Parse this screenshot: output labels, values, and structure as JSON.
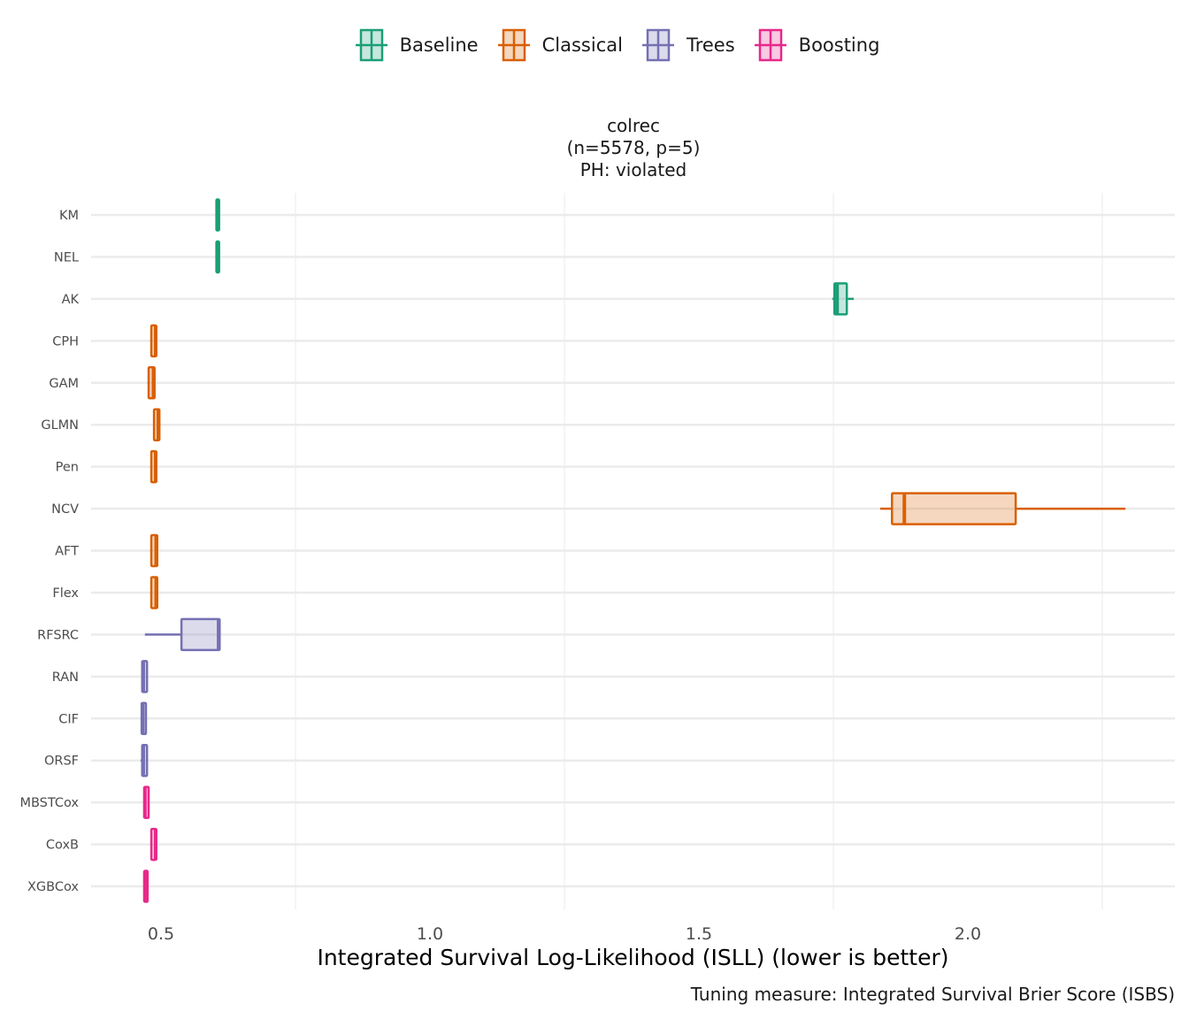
{
  "chart_data": {
    "type": "boxplot",
    "title": "colrec",
    "subtitle": "(n=5578, p=5)",
    "subtitle2": "PH: violated",
    "xlabel": "Integrated Survival Log-Likelihood (ISLL) (lower is better)",
    "caption": "Tuning measure: Integrated Survival Brier Score (ISBS)",
    "xlim": [
      0.37,
      2.385
    ],
    "xticks": [
      0.5,
      1.0,
      1.5,
      2.0
    ],
    "xtick_labels": [
      "0.5",
      "1.0",
      "1.5",
      "2.0"
    ],
    "grid": true,
    "legend_position": "top",
    "groups": [
      {
        "name": "Baseline",
        "color": "#1b9e77"
      },
      {
        "name": "Classical",
        "color": "#d95f02"
      },
      {
        "name": "Trees",
        "color": "#7570b3"
      },
      {
        "name": "Boosting",
        "color": "#e7298a"
      }
    ],
    "series": [
      {
        "name": "KM",
        "group": "Baseline",
        "min": 0.603,
        "q1": 0.603,
        "median": 0.606,
        "q3": 0.608,
        "max": 0.608
      },
      {
        "name": "NEL",
        "group": "Baseline",
        "min": 0.603,
        "q1": 0.603,
        "median": 0.606,
        "q3": 0.608,
        "max": 0.608
      },
      {
        "name": "AK",
        "group": "Baseline",
        "min": 1.748,
        "q1": 1.752,
        "median": 1.757,
        "q3": 1.775,
        "max": 1.788
      },
      {
        "name": "CPH",
        "group": "Classical",
        "min": 0.48,
        "q1": 0.482,
        "median": 0.49,
        "q3": 0.491,
        "max": 0.491
      },
      {
        "name": "GAM",
        "group": "Classical",
        "min": 0.475,
        "q1": 0.477,
        "median": 0.486,
        "q3": 0.488,
        "max": 0.488
      },
      {
        "name": "GLMN",
        "group": "Classical",
        "min": 0.487,
        "q1": 0.487,
        "median": 0.495,
        "q3": 0.497,
        "max": 0.498
      },
      {
        "name": "Pen",
        "group": "Classical",
        "min": 0.48,
        "q1": 0.482,
        "median": 0.49,
        "q3": 0.491,
        "max": 0.491
      },
      {
        "name": "NCV",
        "group": "Classical",
        "min": 1.837,
        "q1": 1.859,
        "median": 1.882,
        "q3": 2.089,
        "max": 2.293
      },
      {
        "name": "AFT",
        "group": "Classical",
        "min": 0.48,
        "q1": 0.482,
        "median": 0.491,
        "q3": 0.493,
        "max": 0.493
      },
      {
        "name": "Flex",
        "group": "Classical",
        "min": 0.48,
        "q1": 0.482,
        "median": 0.491,
        "q3": 0.493,
        "max": 0.493
      },
      {
        "name": "RFSRC",
        "group": "Trees",
        "min": 0.47,
        "q1": 0.538,
        "median": 0.607,
        "q3": 0.609,
        "max": 0.609
      },
      {
        "name": "RAN",
        "group": "Trees",
        "min": 0.464,
        "q1": 0.465,
        "median": 0.467,
        "q3": 0.474,
        "max": 0.474
      },
      {
        "name": "CIF",
        "group": "Trees",
        "min": 0.462,
        "q1": 0.464,
        "median": 0.466,
        "q3": 0.472,
        "max": 0.472
      },
      {
        "name": "ORSF",
        "group": "Trees",
        "min": 0.462,
        "q1": 0.465,
        "median": 0.467,
        "q3": 0.474,
        "max": 0.474
      },
      {
        "name": "MBSTCox",
        "group": "Boosting",
        "min": 0.468,
        "q1": 0.469,
        "median": 0.47,
        "q3": 0.477,
        "max": 0.477
      },
      {
        "name": "CoxB",
        "group": "Boosting",
        "min": 0.48,
        "q1": 0.482,
        "median": 0.49,
        "q3": 0.491,
        "max": 0.491
      },
      {
        "name": "XGBCox",
        "group": "Boosting",
        "min": 0.469,
        "q1": 0.469,
        "median": 0.47,
        "q3": 0.475,
        "max": 0.475
      }
    ]
  }
}
